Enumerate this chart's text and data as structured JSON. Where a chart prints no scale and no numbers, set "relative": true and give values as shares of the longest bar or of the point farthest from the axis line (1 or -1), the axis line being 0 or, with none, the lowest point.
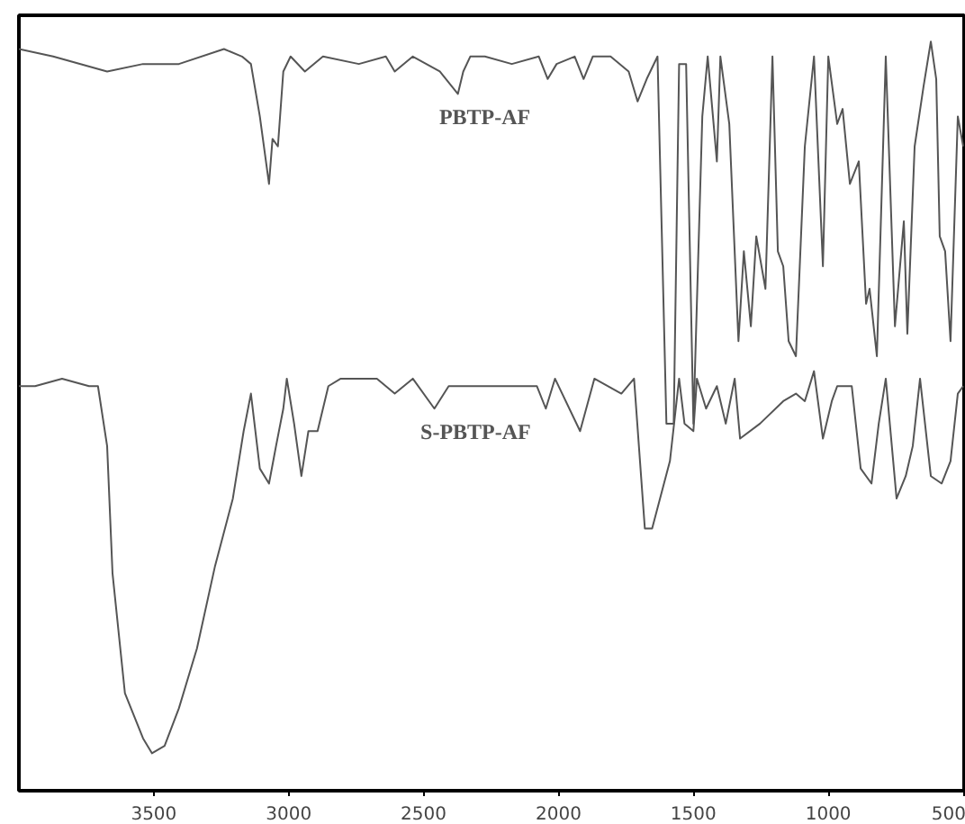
{
  "chart_data": {
    "type": "line",
    "relative": true,
    "tick_labels": "x",
    "grid": false,
    "xlim": [
      4000,
      490
    ],
    "xticks": [
      3500,
      3000,
      2500,
      2000,
      1500,
      1000,
      500
    ],
    "series": [
      {
        "name": "PBTP-AF",
        "color": "#555555",
        "x": [
          4000,
          3873,
          3673,
          3540,
          3407,
          3240,
          3173,
          3140,
          3107,
          3073,
          3060,
          3040,
          3020,
          2993,
          2940,
          2873,
          2740,
          2640,
          2607,
          2540,
          2440,
          2373,
          2353,
          2327,
          2273,
          2173,
          2073,
          2040,
          2007,
          1940,
          1907,
          1873,
          1807,
          1740,
          1707,
          1673,
          1633,
          1600,
          1573,
          1553,
          1527,
          1500,
          1467,
          1447,
          1413,
          1400,
          1367,
          1333,
          1313,
          1287,
          1267,
          1233,
          1207,
          1187,
          1167,
          1147,
          1120,
          1087,
          1053,
          1020,
          1000,
          967,
          947,
          920,
          887,
          860,
          847,
          820,
          787,
          753,
          720,
          707,
          680,
          647,
          620,
          600,
          587,
          567,
          547,
          520,
          500
        ],
        "values": [
          0.99,
          0.98,
          0.96,
          0.97,
          0.97,
          0.99,
          0.98,
          0.97,
          0.9,
          0.81,
          0.87,
          0.86,
          0.96,
          0.98,
          0.96,
          0.98,
          0.97,
          0.98,
          0.96,
          0.98,
          0.96,
          0.93,
          0.96,
          0.98,
          0.98,
          0.97,
          0.98,
          0.95,
          0.97,
          0.98,
          0.95,
          0.98,
          0.98,
          0.96,
          0.92,
          0.95,
          0.98,
          0.49,
          0.49,
          0.97,
          0.97,
          0.49,
          0.9,
          0.98,
          0.84,
          0.98,
          0.89,
          0.6,
          0.72,
          0.62,
          0.74,
          0.67,
          0.98,
          0.72,
          0.7,
          0.6,
          0.58,
          0.86,
          0.98,
          0.7,
          0.98,
          0.89,
          0.91,
          0.81,
          0.84,
          0.65,
          0.67,
          0.58,
          0.98,
          0.62,
          0.76,
          0.61,
          0.86,
          0.94,
          1.0,
          0.95,
          0.74,
          0.72,
          0.6,
          0.9,
          0.86
        ]
      },
      {
        "name": "S-PBTP-AF",
        "color": "#555555",
        "x": [
          4000,
          3940,
          3840,
          3740,
          3707,
          3673,
          3653,
          3607,
          3540,
          3507,
          3460,
          3407,
          3340,
          3273,
          3207,
          3167,
          3140,
          3107,
          3073,
          3047,
          3020,
          3007,
          2980,
          2953,
          2927,
          2893,
          2853,
          2807,
          2740,
          2673,
          2607,
          2540,
          2460,
          2407,
          2307,
          2080,
          2047,
          2013,
          1920,
          1867,
          1767,
          1720,
          1680,
          1653,
          1587,
          1553,
          1533,
          1500,
          1487,
          1453,
          1413,
          1380,
          1347,
          1327,
          1253,
          1167,
          1120,
          1087,
          1053,
          1020,
          987,
          967,
          913,
          880,
          840,
          813,
          787,
          747,
          713,
          687,
          660,
          620,
          580,
          547,
          520,
          500
        ],
        "values": [
          0.54,
          0.54,
          0.55,
          0.54,
          0.54,
          0.46,
          0.29,
          0.13,
          0.07,
          0.05,
          0.06,
          0.11,
          0.19,
          0.3,
          0.39,
          0.48,
          0.53,
          0.43,
          0.41,
          0.46,
          0.51,
          0.55,
          0.49,
          0.42,
          0.48,
          0.48,
          0.54,
          0.55,
          0.55,
          0.55,
          0.53,
          0.55,
          0.51,
          0.54,
          0.54,
          0.54,
          0.51,
          0.55,
          0.48,
          0.55,
          0.53,
          0.55,
          0.35,
          0.35,
          0.44,
          0.55,
          0.49,
          0.48,
          0.55,
          0.51,
          0.54,
          0.49,
          0.55,
          0.47,
          0.49,
          0.52,
          0.53,
          0.52,
          0.56,
          0.47,
          0.52,
          0.54,
          0.54,
          0.43,
          0.41,
          0.49,
          0.55,
          0.39,
          0.42,
          0.46,
          0.55,
          0.42,
          0.41,
          0.44,
          0.53,
          0.54
        ]
      }
    ]
  }
}
